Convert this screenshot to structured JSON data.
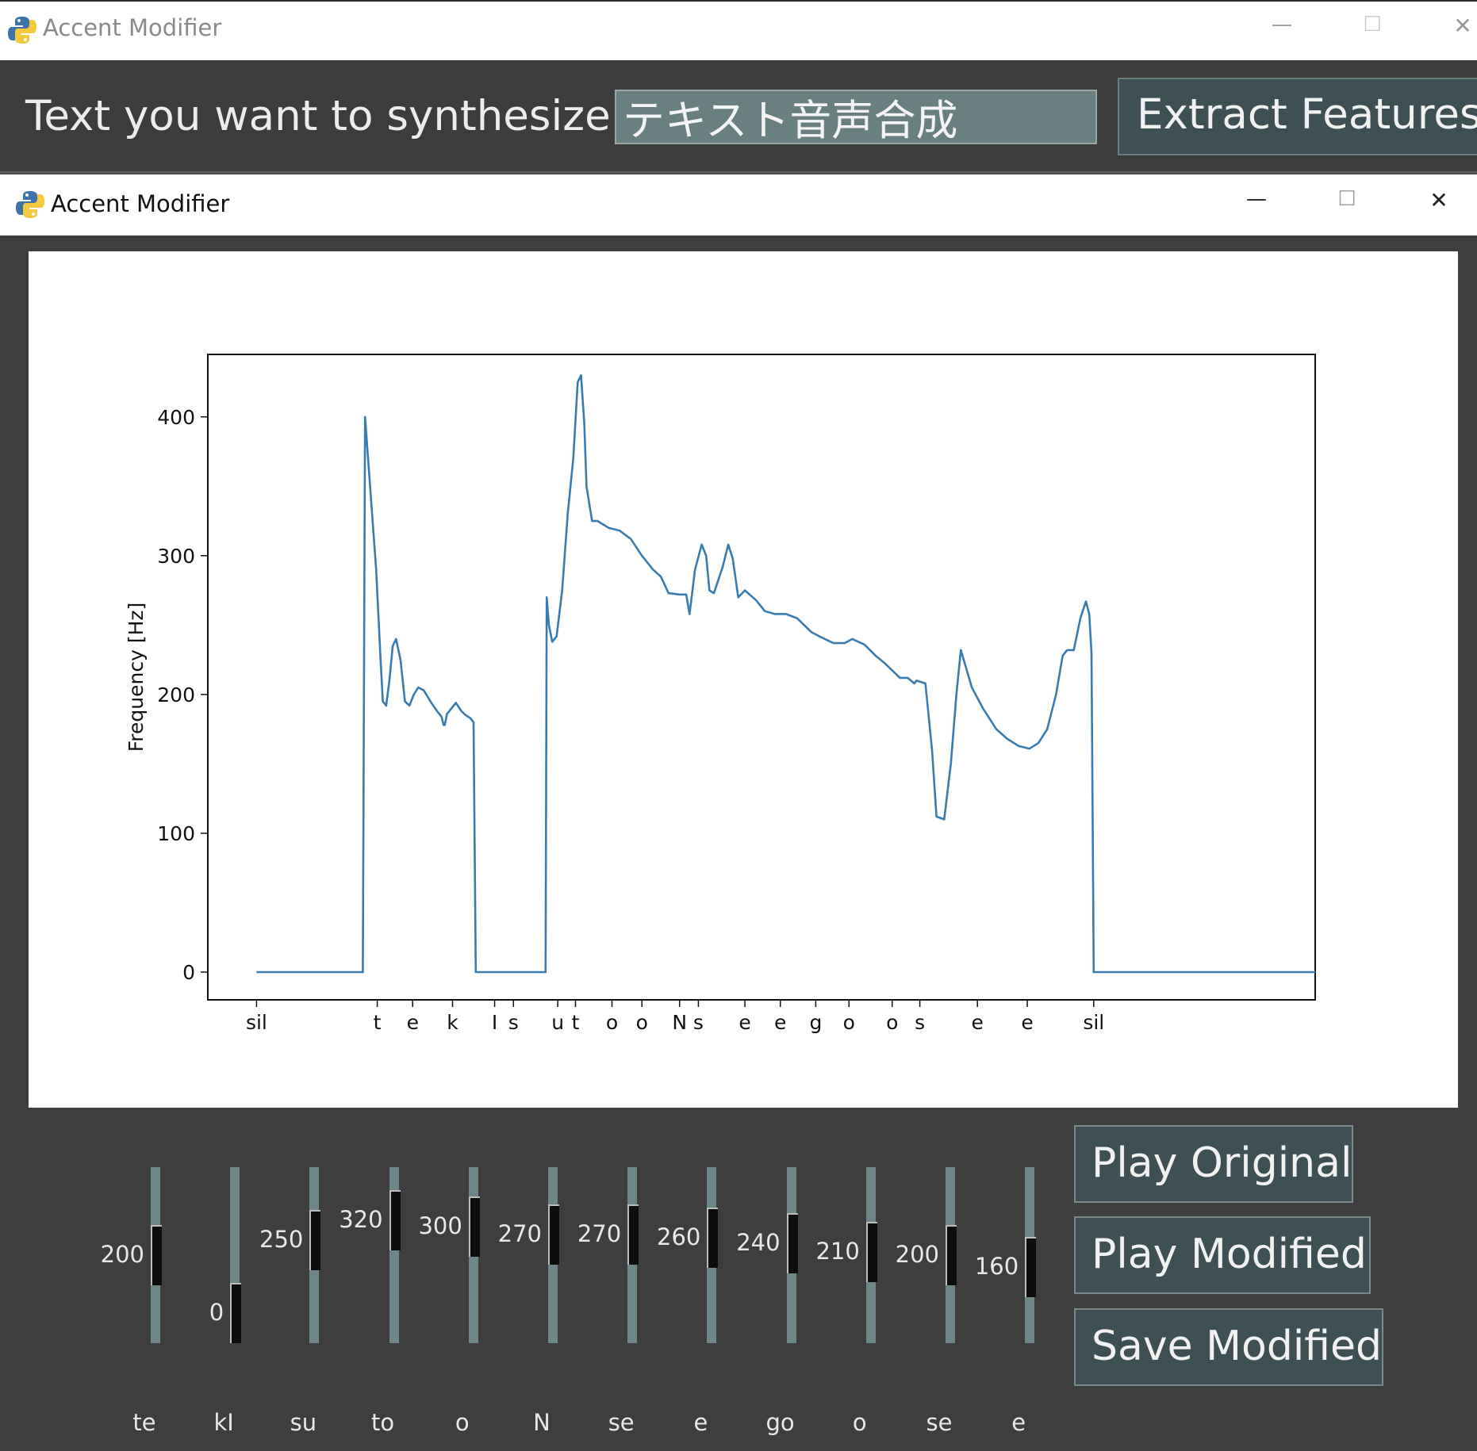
{
  "window1": {
    "title": "Accent Modifier",
    "controls": {
      "minimize": "—",
      "maximize": "☐",
      "close": "✕"
    },
    "text_label": "Text you want to synthesize:",
    "text_value": "テキスト音声合成",
    "extract_label": "Extract Features"
  },
  "window2": {
    "title": "Accent Modifier",
    "controls": {
      "minimize": "—",
      "maximize": "☐",
      "close": "✕"
    }
  },
  "chart_data": {
    "type": "line",
    "title": "",
    "xlabel": "",
    "ylabel": "Frequency [Hz]",
    "ylim": [
      -20,
      445
    ],
    "xlim": [
      0,
      1000
    ],
    "grid": false,
    "y_ticks": [
      0,
      100,
      200,
      300,
      400
    ],
    "x_ticks": [
      {
        "pos": 44,
        "label": "sil"
      },
      {
        "pos": 153,
        "label": "t"
      },
      {
        "pos": 185,
        "label": "e"
      },
      {
        "pos": 221,
        "label": "k"
      },
      {
        "pos": 259,
        "label": "I"
      },
      {
        "pos": 276,
        "label": "s"
      },
      {
        "pos": 316,
        "label": "u"
      },
      {
        "pos": 332,
        "label": "t"
      },
      {
        "pos": 365,
        "label": "o"
      },
      {
        "pos": 392,
        "label": "o"
      },
      {
        "pos": 426,
        "label": "N"
      },
      {
        "pos": 443,
        "label": "s"
      },
      {
        "pos": 485,
        "label": "e"
      },
      {
        "pos": 517,
        "label": "e"
      },
      {
        "pos": 549,
        "label": "g"
      },
      {
        "pos": 579,
        "label": "o"
      },
      {
        "pos": 618,
        "label": "o"
      },
      {
        "pos": 643,
        "label": "s"
      },
      {
        "pos": 695,
        "label": "e"
      },
      {
        "pos": 740,
        "label": "e"
      },
      {
        "pos": 800,
        "label": "sil"
      }
    ],
    "series": [
      {
        "color": "#3a7bb0",
        "x": [
          44,
          137,
          140,
          142,
          147,
          152,
          156,
          158,
          161,
          164,
          167,
          170,
          174,
          178,
          182,
          186,
          190,
          195,
          201,
          207,
          211,
          213,
          214,
          216,
          220,
          224,
          229,
          233,
          237,
          240,
          242,
          244,
          305,
          306,
          308,
          311,
          315,
          320,
          325,
          330,
          334,
          337,
          340,
          342,
          347,
          352,
          362,
          372,
          382,
          392,
          402,
          409,
          412,
          416,
          426,
          432,
          435,
          440,
          446,
          450,
          453,
          457,
          465,
          470,
          474,
          479,
          485,
          495,
          503,
          512,
          522,
          532,
          545,
          552,
          565,
          575,
          582,
          593,
          603,
          612,
          625,
          632,
          638,
          640,
          648,
          654,
          658,
          665,
          671,
          676,
          680,
          690,
          700,
          712,
          722,
          732,
          742,
          750,
          758,
          766,
          772,
          776,
          782,
          788,
          793,
          796,
          798,
          800,
          802,
          815,
          818,
          1000
        ],
        "y": [
          0,
          0,
          0,
          400,
          345,
          290,
          225,
          195,
          192,
          210,
          235,
          240,
          225,
          195,
          192,
          200,
          205,
          203,
          195,
          188,
          184,
          178,
          178,
          186,
          190,
          194,
          188,
          185,
          183,
          180,
          0,
          0,
          0,
          270,
          250,
          238,
          242,
          275,
          330,
          370,
          425,
          430,
          395,
          350,
          325,
          325,
          320,
          318,
          312,
          300,
          290,
          285,
          280,
          273,
          272,
          272,
          258,
          290,
          308,
          300,
          275,
          273,
          292,
          308,
          298,
          270,
          275,
          268,
          260,
          258,
          258,
          255,
          245,
          242,
          237,
          237,
          240,
          236,
          228,
          222,
          212,
          212,
          208,
          210,
          208,
          160,
          112,
          110,
          150,
          200,
          232,
          205,
          190,
          175,
          168,
          163,
          161,
          165,
          175,
          200,
          228,
          232,
          232,
          255,
          267,
          258,
          230,
          0,
          0,
          0,
          0,
          0
        ]
      }
    ]
  },
  "sliders": [
    {
      "phoneme": "te",
      "value": 200,
      "fraction": 0.5
    },
    {
      "phoneme": "kI",
      "value": 0,
      "fraction": 0.0
    },
    {
      "phoneme": "su",
      "value": 250,
      "fraction": 0.63
    },
    {
      "phoneme": "to",
      "value": 320,
      "fraction": 0.8
    },
    {
      "phoneme": "o",
      "value": 300,
      "fraction": 0.75
    },
    {
      "phoneme": "N",
      "value": 270,
      "fraction": 0.68
    },
    {
      "phoneme": "se",
      "value": 270,
      "fraction": 0.68
    },
    {
      "phoneme": "e",
      "value": 260,
      "fraction": 0.65
    },
    {
      "phoneme": "go",
      "value": 240,
      "fraction": 0.6
    },
    {
      "phoneme": "o",
      "value": 210,
      "fraction": 0.53
    },
    {
      "phoneme": "se",
      "value": 200,
      "fraction": 0.5
    },
    {
      "phoneme": "e",
      "value": 160,
      "fraction": 0.4
    }
  ],
  "buttons": {
    "play_original": "Play Original",
    "play_modified": "Play Modified",
    "save_modified": "Save Modified"
  }
}
